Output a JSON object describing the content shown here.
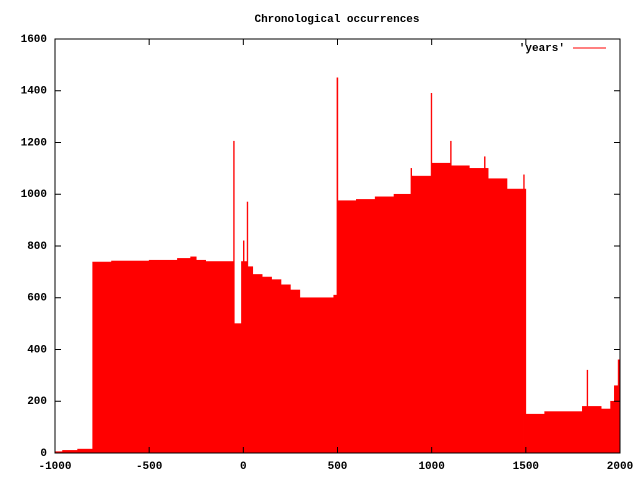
{
  "chart_data": {
    "type": "step-area",
    "title": "Chronological occurrences",
    "x": [
      -1000,
      -960,
      -880,
      -800,
      -700,
      -500,
      -350,
      -280,
      -250,
      -200,
      -52,
      -48,
      -10,
      0,
      4,
      20,
      24,
      50,
      100,
      150,
      200,
      250,
      300,
      480,
      497,
      502,
      600,
      700,
      800,
      890,
      894,
      900,
      997,
      1001,
      1100,
      1104,
      1200,
      1280,
      1284,
      1300,
      1400,
      1488,
      1492,
      1500,
      1600,
      1800,
      1825,
      1829,
      1900,
      1950,
      1970,
      1990
    ],
    "series": [
      {
        "name": "'years'",
        "color": "#ff0000",
        "values": [
          5,
          10,
          15,
          738,
          742,
          745,
          752,
          758,
          745,
          740,
          1205,
          500,
          740,
          820,
          740,
          970,
          720,
          690,
          680,
          670,
          650,
          630,
          600,
          610,
          1450,
          975,
          980,
          990,
          1000,
          1100,
          1070,
          1070,
          1390,
          1120,
          1205,
          1110,
          1100,
          1145,
          1100,
          1060,
          1020,
          1075,
          1020,
          150,
          160,
          180,
          320,
          180,
          170,
          200,
          260,
          360
        ]
      }
    ],
    "xlim": [
      -1000,
      2000
    ],
    "xticks": [
      -1000,
      -500,
      0,
      500,
      1000,
      1500,
      2000
    ],
    "ylim": [
      0,
      1600
    ],
    "yticks": [
      0,
      200,
      400,
      600,
      800,
      1000,
      1200,
      1400,
      1600
    ],
    "legend": "top-right",
    "grid": false
  }
}
